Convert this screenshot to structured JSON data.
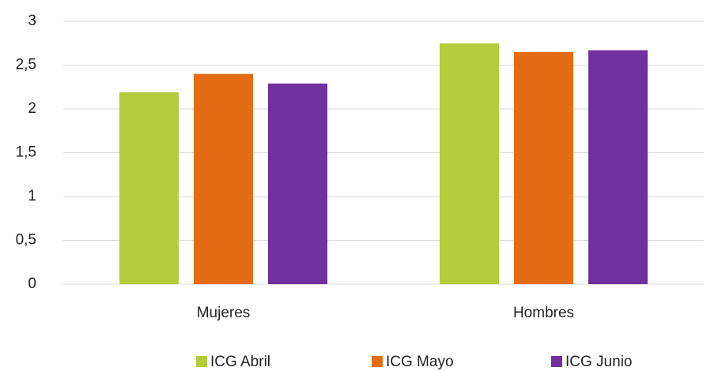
{
  "chart_data": {
    "type": "bar",
    "categories": [
      "Mujeres",
      "Hombres"
    ],
    "series": [
      {
        "name": "ICG Abril",
        "color": "#b4cb3b",
        "values": [
          2.19,
          2.75
        ]
      },
      {
        "name": "ICG Mayo",
        "color": "#e46c14",
        "values": [
          2.4,
          2.65
        ]
      },
      {
        "name": "ICG Junio",
        "color": "#7030a0",
        "values": [
          2.29,
          2.67
        ]
      }
    ],
    "ylim": [
      0,
      3
    ],
    "yticks": [
      0,
      {
        "value": 0.5,
        "label": "0,5"
      },
      1,
      {
        "value": 1.5,
        "label": "1,5"
      },
      2,
      {
        "value": 2.5,
        "label": "2,5"
      },
      3
    ],
    "grid": true,
    "legend": "bottom"
  }
}
